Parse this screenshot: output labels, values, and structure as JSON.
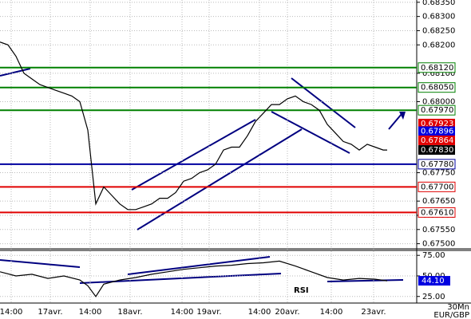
{
  "chart_data": [
    {
      "type": "line",
      "x": [
        0,
        1,
        2,
        3,
        4,
        5,
        6,
        7,
        8,
        9,
        10,
        11,
        11.5,
        12,
        13,
        14,
        15,
        16,
        17,
        18,
        19,
        20,
        21,
        22,
        23,
        24,
        25,
        26,
        27,
        28,
        29,
        30,
        31,
        32,
        33,
        34,
        35,
        36,
        37,
        38,
        39,
        40,
        41,
        42,
        43,
        44,
        45,
        46,
        47,
        48,
        48.5
      ],
      "series": [
        {
          "name": "EUR/GBP",
          "color": "#000000",
          "values": [
            0.6821,
            0.682,
            0.6816,
            0.681,
            0.6808,
            0.6806,
            0.6805,
            0.6804,
            0.6803,
            0.6802,
            0.68,
            0.679,
            0.6777,
            0.6764,
            0.677,
            0.6767,
            0.6764,
            0.6762,
            0.6762,
            0.6763,
            0.6764,
            0.6766,
            0.6766,
            0.6768,
            0.6772,
            0.6773,
            0.6775,
            0.6776,
            0.6778,
            0.6783,
            0.6784,
            0.6784,
            0.6788,
            0.6793,
            0.6796,
            0.6799,
            0.6799,
            0.6801,
            0.6802,
            0.68,
            0.6799,
            0.6797,
            0.6792,
            0.6789,
            0.6786,
            0.6785,
            0.6783,
            0.6785,
            0.6784,
            0.6783,
            0.6783
          ]
        }
      ],
      "xlim": [
        0,
        52.2
      ],
      "ylim": [
        0.67482,
        0.68358
      ],
      "yticks": [
        {
          "value": 0.6835,
          "label": "0.68350"
        },
        {
          "value": 0.683,
          "label": "0.68300"
        },
        {
          "value": 0.6825,
          "label": "0.68250"
        },
        {
          "value": 0.682,
          "label": "0.68200"
        },
        {
          "value": 0.681,
          "label": "0.68100"
        },
        {
          "value": 0.68,
          "label": "0.68000"
        },
        {
          "value": 0.6775,
          "label": "0.67750"
        },
        {
          "value": 0.6765,
          "label": "0.67650"
        },
        {
          "value": 0.676,
          "label": "0.67600"
        },
        {
          "value": 0.6755,
          "label": "0.67550"
        },
        {
          "value": 0.675,
          "label": "0.67500"
        }
      ],
      "xticks": [
        {
          "value": 1.4,
          "label": "14:00"
        },
        {
          "value": 6.3,
          "label": "17avr."
        },
        {
          "value": 11.3,
          "label": "14:00"
        },
        {
          "value": 16.3,
          "label": "18avr."
        },
        {
          "value": 22.8,
          "label": "14:00"
        },
        {
          "value": 26.2,
          "label": "19avr."
        },
        {
          "value": 32.5,
          "label": "14:00"
        },
        {
          "value": 36,
          "label": "20avr."
        },
        {
          "value": 41.5,
          "label": "14:00"
        },
        {
          "value": 46.8,
          "label": "23avr."
        }
      ],
      "levels": [
        {
          "value": 0.6812,
          "label": "0.68120",
          "color": "#008000"
        },
        {
          "value": 0.6805,
          "label": "0.68050",
          "color": "#008000"
        },
        {
          "value": 0.6797,
          "label": "0.67970",
          "color": "#008000"
        },
        {
          "value": 0.6778,
          "label": "0.67780",
          "color": "#0000a0"
        },
        {
          "value": 0.677,
          "label": "0.67700",
          "color": "#e00000"
        },
        {
          "value": 0.6761,
          "label": "0.67610",
          "color": "#e00000"
        }
      ],
      "markers": [
        {
          "value": 0.67923,
          "label": "0.67923",
          "color": "#e00000"
        },
        {
          "value": 0.67896,
          "label": "0.67896",
          "color": "#0000e0"
        },
        {
          "value": 0.67864,
          "label": "0.67864",
          "color": "#e00000"
        },
        {
          "value": 0.6783,
          "label": "0.67830",
          "color": "#000000"
        }
      ],
      "grid": true,
      "period": "30Mn",
      "symbol": "EUR/GBP"
    },
    {
      "type": "line",
      "title": "RSI",
      "x": [
        0,
        2,
        4,
        6,
        8,
        10,
        11,
        12,
        13,
        15,
        17,
        19,
        21,
        23,
        25,
        27,
        29,
        31,
        33,
        35,
        37,
        39,
        41,
        43,
        45,
        47,
        48.5
      ],
      "series": [
        {
          "name": "RSI",
          "color": "#000000",
          "values": [
            55,
            50,
            52,
            47,
            50,
            45,
            38,
            25,
            40,
            45,
            48,
            52,
            55,
            58,
            60,
            62,
            63,
            65,
            66,
            68,
            62,
            55,
            48,
            45,
            47,
            46,
            44.1
          ]
        }
      ],
      "value_label": "44.10",
      "xlim": [
        0,
        52.2
      ],
      "ylim": [
        17,
        81
      ],
      "yticks": [
        {
          "value": 75,
          "label": "75.00"
        },
        {
          "value": 50,
          "label": "50.00"
        },
        {
          "value": 25,
          "label": "25.00"
        }
      ]
    }
  ]
}
